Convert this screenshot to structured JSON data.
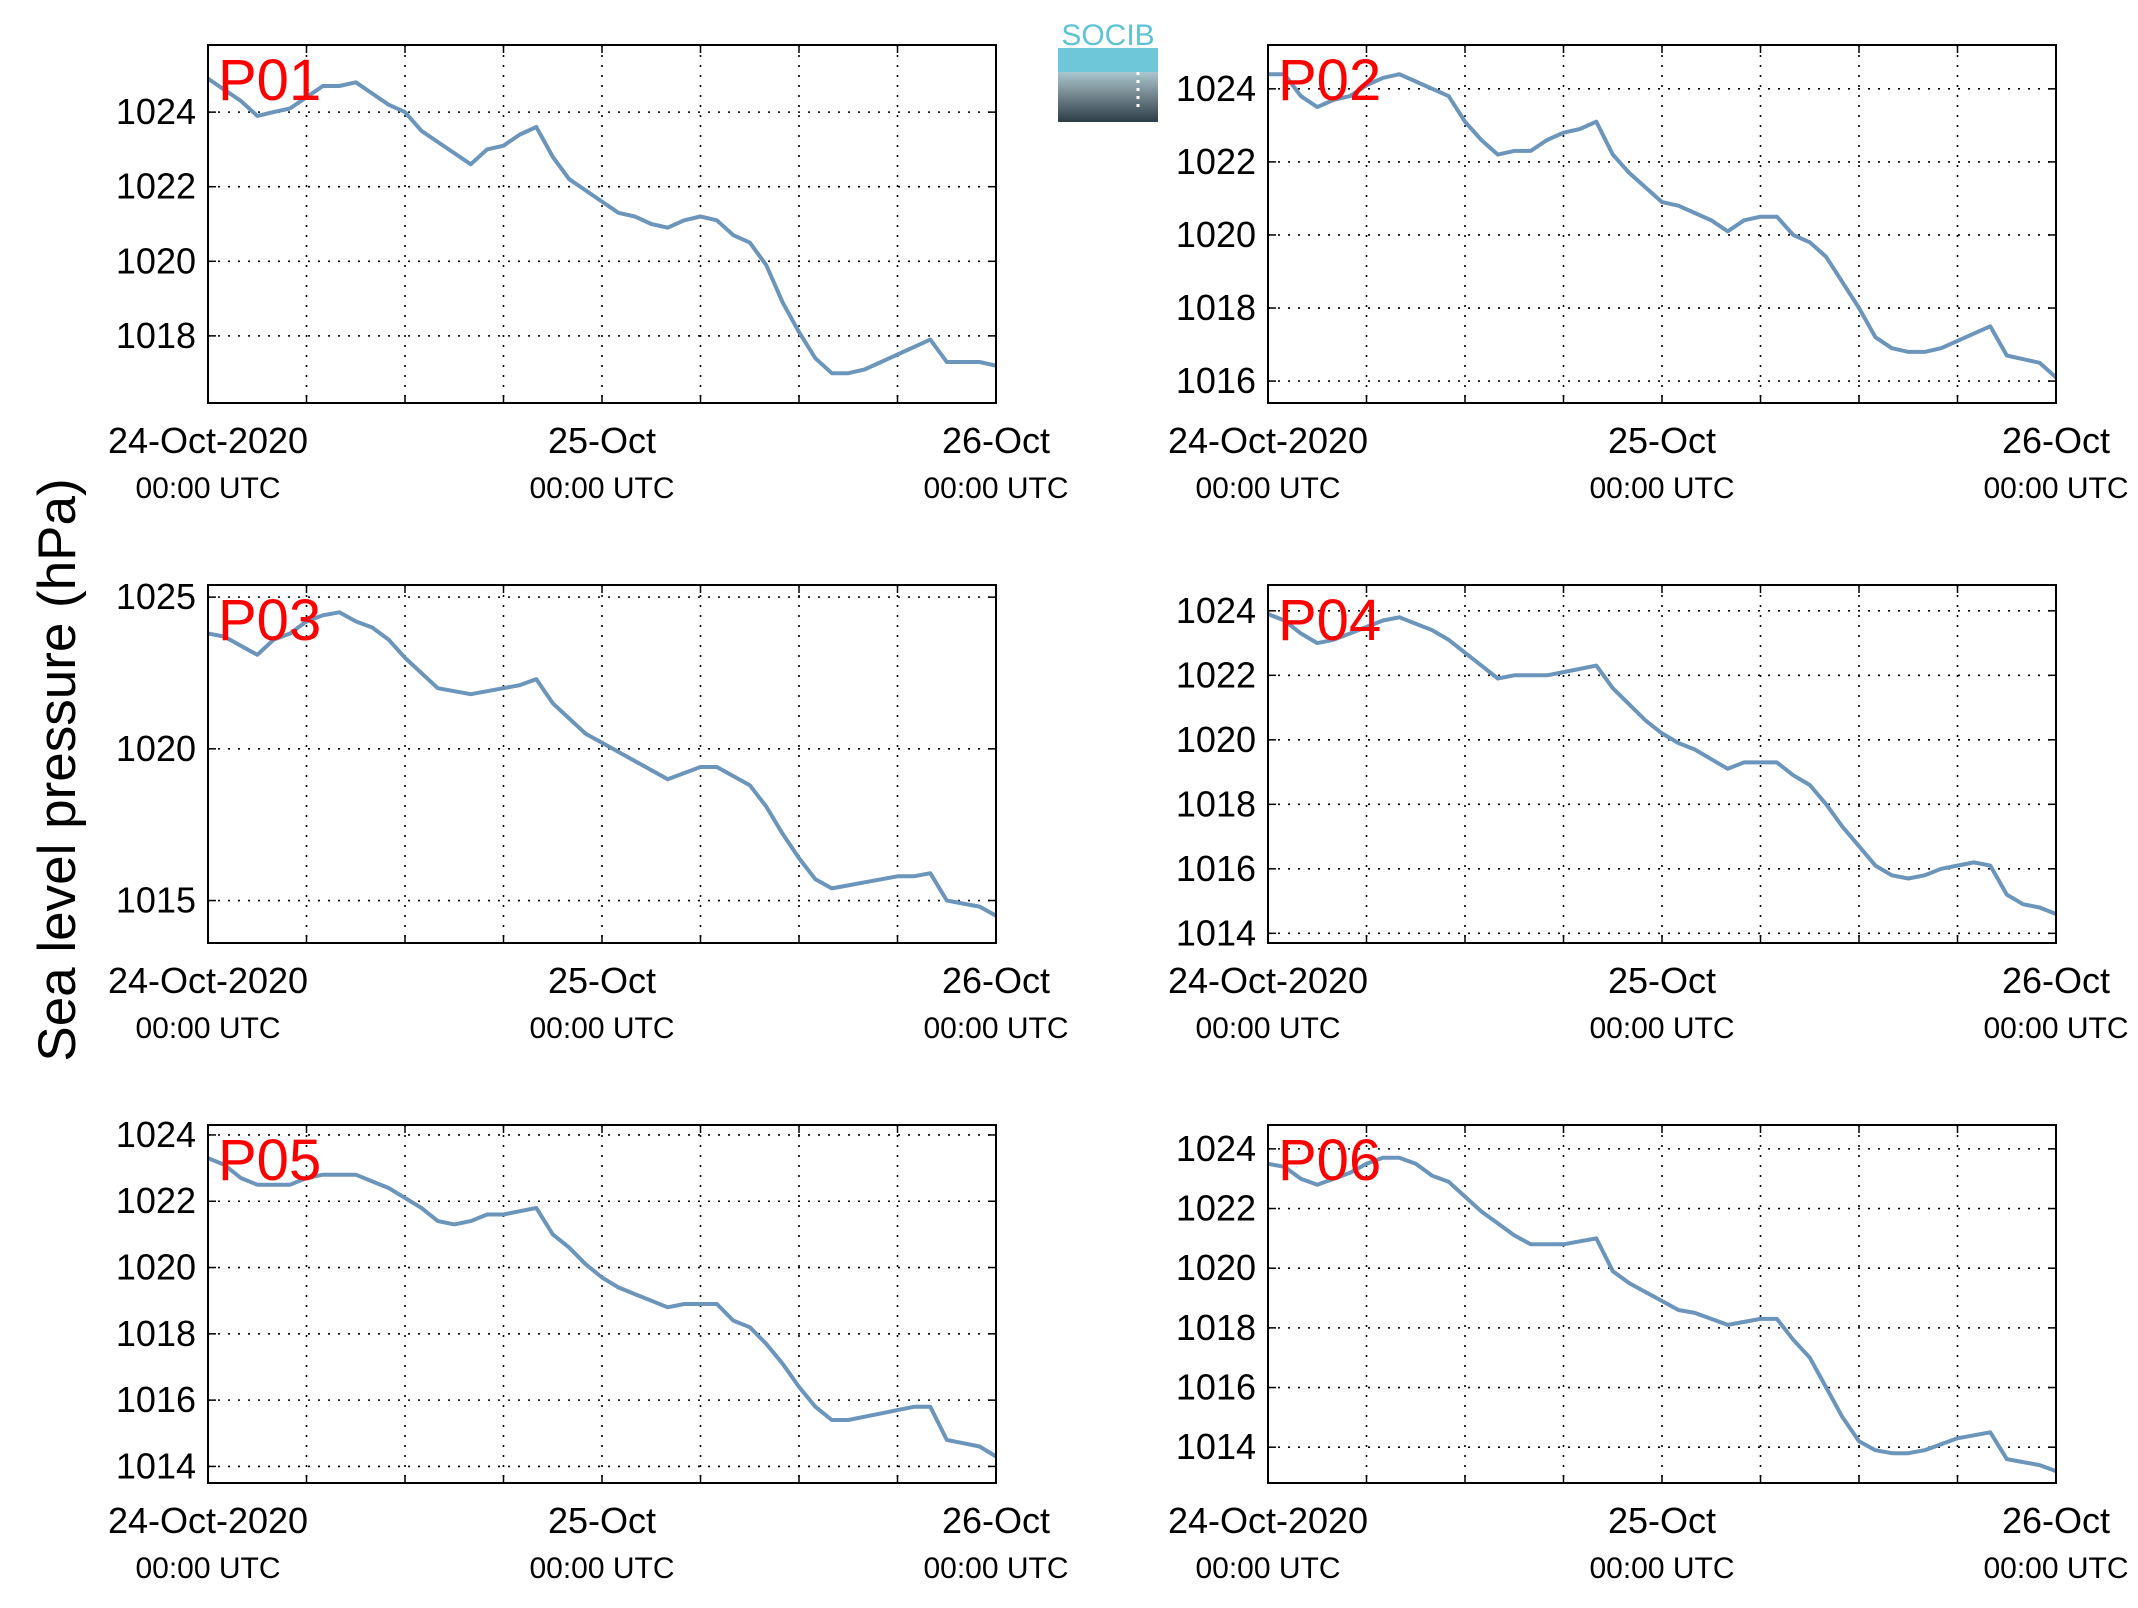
{
  "figure": {
    "ylabel": "Sea level pressure (hPa)",
    "logo_text": "SOCIB",
    "line_color": "#6b95bb",
    "label_color": "#ff0000"
  },
  "chart_data": [
    {
      "type": "line",
      "label": "P01",
      "xlim": [
        0,
        48
      ],
      "ylim": [
        1016.2,
        1025.8
      ],
      "yticks": [
        1018,
        1020,
        1022,
        1024
      ],
      "x_tick_labels": [
        {
          "x": 0,
          "date": "24-Oct-2020",
          "time": "00:00 UTC"
        },
        {
          "x": 24,
          "date": "25-Oct",
          "time": "00:00 UTC"
        },
        {
          "x": 48,
          "date": "26-Oct",
          "time": "00:00 UTC"
        }
      ],
      "x": [
        0,
        1,
        2,
        3,
        4,
        5,
        6,
        7,
        8,
        9,
        10,
        11,
        12,
        13,
        14,
        15,
        16,
        17,
        18,
        19,
        20,
        21,
        22,
        23,
        24,
        25,
        26,
        27,
        28,
        29,
        30,
        31,
        32,
        33,
        34,
        35,
        36,
        37,
        38,
        39,
        40,
        41,
        42,
        43,
        44,
        45,
        46,
        47,
        48
      ],
      "values": [
        1024.9,
        1024.6,
        1024.3,
        1023.9,
        1024.0,
        1024.1,
        1024.4,
        1024.7,
        1024.7,
        1024.8,
        1024.5,
        1024.2,
        1024.0,
        1023.5,
        1023.2,
        1022.9,
        1022.6,
        1023.0,
        1023.1,
        1023.4,
        1023.6,
        1022.8,
        1022.2,
        1021.9,
        1021.6,
        1021.3,
        1021.2,
        1021.0,
        1020.9,
        1021.1,
        1021.2,
        1021.1,
        1020.7,
        1020.5,
        1019.9,
        1018.9,
        1018.1,
        1017.4,
        1017.0,
        1017.0,
        1017.1,
        1017.3,
        1017.5,
        1017.7,
        1017.9,
        1017.3,
        1017.3,
        1017.3,
        1017.2
      ]
    },
    {
      "type": "line",
      "label": "P02",
      "xlim": [
        0,
        48
      ],
      "ylim": [
        1015.4,
        1025.2
      ],
      "yticks": [
        1016,
        1018,
        1020,
        1022,
        1024
      ],
      "x_tick_labels": [
        {
          "x": 0,
          "date": "24-Oct-2020",
          "time": "00:00 UTC"
        },
        {
          "x": 24,
          "date": "25-Oct",
          "time": "00:00 UTC"
        },
        {
          "x": 48,
          "date": "26-Oct",
          "time": "00:00 UTC"
        }
      ],
      "x": [
        0,
        1,
        2,
        3,
        4,
        5,
        6,
        7,
        8,
        9,
        10,
        11,
        12,
        13,
        14,
        15,
        16,
        17,
        18,
        19,
        20,
        21,
        22,
        23,
        24,
        25,
        26,
        27,
        28,
        29,
        30,
        31,
        32,
        33,
        34,
        35,
        36,
        37,
        38,
        39,
        40,
        41,
        42,
        43,
        44,
        45,
        46,
        47,
        48
      ],
      "values": [
        1024.4,
        1024.4,
        1023.8,
        1023.5,
        1023.7,
        1023.8,
        1024.1,
        1024.3,
        1024.4,
        1024.2,
        1024.0,
        1023.8,
        1023.1,
        1022.6,
        1022.2,
        1022.3,
        1022.3,
        1022.6,
        1022.8,
        1022.9,
        1023.1,
        1022.2,
        1021.7,
        1021.3,
        1020.9,
        1020.8,
        1020.6,
        1020.4,
        1020.1,
        1020.4,
        1020.5,
        1020.5,
        1020.0,
        1019.8,
        1019.4,
        1018.7,
        1018.0,
        1017.2,
        1016.9,
        1016.8,
        1016.8,
        1016.9,
        1017.1,
        1017.3,
        1017.5,
        1016.7,
        1016.6,
        1016.5,
        1016.1
      ]
    },
    {
      "type": "line",
      "label": "P03",
      "xlim": [
        0,
        48
      ],
      "ylim": [
        1013.6,
        1025.4
      ],
      "yticks": [
        1015,
        1020,
        1025
      ],
      "x_tick_labels": [
        {
          "x": 0,
          "date": "24-Oct-2020",
          "time": "00:00 UTC"
        },
        {
          "x": 24,
          "date": "25-Oct",
          "time": "00:00 UTC"
        },
        {
          "x": 48,
          "date": "26-Oct",
          "time": "00:00 UTC"
        }
      ],
      "x": [
        0,
        1,
        2,
        3,
        4,
        5,
        6,
        7,
        8,
        9,
        10,
        11,
        12,
        13,
        14,
        15,
        16,
        17,
        18,
        19,
        20,
        21,
        22,
        23,
        24,
        25,
        26,
        27,
        28,
        29,
        30,
        31,
        32,
        33,
        34,
        35,
        36,
        37,
        38,
        39,
        40,
        41,
        42,
        43,
        44,
        45,
        46,
        47,
        48
      ],
      "values": [
        1023.8,
        1023.7,
        1023.4,
        1023.1,
        1023.6,
        1023.8,
        1024.2,
        1024.4,
        1024.5,
        1024.2,
        1024.0,
        1023.6,
        1023.0,
        1022.5,
        1022.0,
        1021.9,
        1021.8,
        1021.9,
        1022.0,
        1022.1,
        1022.3,
        1021.5,
        1021.0,
        1020.5,
        1020.2,
        1019.9,
        1019.6,
        1019.3,
        1019.0,
        1019.2,
        1019.4,
        1019.4,
        1019.1,
        1018.8,
        1018.1,
        1017.2,
        1016.4,
        1015.7,
        1015.4,
        1015.5,
        1015.6,
        1015.7,
        1015.8,
        1015.8,
        1015.9,
        1015.0,
        1014.9,
        1014.8,
        1014.5
      ]
    },
    {
      "type": "line",
      "label": "P04",
      "xlim": [
        0,
        48
      ],
      "ylim": [
        1013.7,
        1024.8
      ],
      "yticks": [
        1014,
        1016,
        1018,
        1020,
        1022,
        1024
      ],
      "x_tick_labels": [
        {
          "x": 0,
          "date": "24-Oct-2020",
          "time": "00:00 UTC"
        },
        {
          "x": 24,
          "date": "25-Oct",
          "time": "00:00 UTC"
        },
        {
          "x": 48,
          "date": "26-Oct",
          "time": "00:00 UTC"
        }
      ],
      "x": [
        0,
        1,
        2,
        3,
        4,
        5,
        6,
        7,
        8,
        9,
        10,
        11,
        12,
        13,
        14,
        15,
        16,
        17,
        18,
        19,
        20,
        21,
        22,
        23,
        24,
        25,
        26,
        27,
        28,
        29,
        30,
        31,
        32,
        33,
        34,
        35,
        36,
        37,
        38,
        39,
        40,
        41,
        42,
        43,
        44,
        45,
        46,
        47,
        48
      ],
      "values": [
        1023.9,
        1023.7,
        1023.3,
        1023.0,
        1023.1,
        1023.3,
        1023.5,
        1023.7,
        1023.8,
        1023.6,
        1023.4,
        1023.1,
        1022.7,
        1022.3,
        1021.9,
        1022.0,
        1022.0,
        1022.0,
        1022.1,
        1022.2,
        1022.3,
        1021.6,
        1021.1,
        1020.6,
        1020.2,
        1019.9,
        1019.7,
        1019.4,
        1019.1,
        1019.3,
        1019.3,
        1019.3,
        1018.9,
        1018.6,
        1018.0,
        1017.3,
        1016.7,
        1016.1,
        1015.8,
        1015.7,
        1015.8,
        1016.0,
        1016.1,
        1016.2,
        1016.1,
        1015.2,
        1014.9,
        1014.8,
        1014.6
      ]
    },
    {
      "type": "line",
      "label": "P05",
      "xlim": [
        0,
        48
      ],
      "ylim": [
        1013.5,
        1024.3
      ],
      "yticks": [
        1014,
        1016,
        1018,
        1020,
        1022,
        1024
      ],
      "x_tick_labels": [
        {
          "x": 0,
          "date": "24-Oct-2020",
          "time": "00:00 UTC"
        },
        {
          "x": 24,
          "date": "25-Oct",
          "time": "00:00 UTC"
        },
        {
          "x": 48,
          "date": "26-Oct",
          "time": "00:00 UTC"
        }
      ],
      "x": [
        0,
        1,
        2,
        3,
        4,
        5,
        6,
        7,
        8,
        9,
        10,
        11,
        12,
        13,
        14,
        15,
        16,
        17,
        18,
        19,
        20,
        21,
        22,
        23,
        24,
        25,
        26,
        27,
        28,
        29,
        30,
        31,
        32,
        33,
        34,
        35,
        36,
        37,
        38,
        39,
        40,
        41,
        42,
        43,
        44,
        45,
        46,
        47,
        48
      ],
      "values": [
        1023.3,
        1023.1,
        1022.7,
        1022.5,
        1022.5,
        1022.5,
        1022.7,
        1022.8,
        1022.8,
        1022.8,
        1022.6,
        1022.4,
        1022.1,
        1021.8,
        1021.4,
        1021.3,
        1021.4,
        1021.6,
        1021.6,
        1021.7,
        1021.8,
        1021.0,
        1020.6,
        1020.1,
        1019.7,
        1019.4,
        1019.2,
        1019.0,
        1018.8,
        1018.9,
        1018.9,
        1018.9,
        1018.4,
        1018.2,
        1017.7,
        1017.1,
        1016.4,
        1015.8,
        1015.4,
        1015.4,
        1015.5,
        1015.6,
        1015.7,
        1015.8,
        1015.8,
        1014.8,
        1014.7,
        1014.6,
        1014.3
      ]
    },
    {
      "type": "line",
      "label": "P06",
      "xlim": [
        0,
        48
      ],
      "ylim": [
        1012.8,
        1024.8
      ],
      "yticks": [
        1014,
        1016,
        1018,
        1020,
        1022,
        1024
      ],
      "x_tick_labels": [
        {
          "x": 0,
          "date": "24-Oct-2020",
          "time": "00:00 UTC"
        },
        {
          "x": 24,
          "date": "25-Oct",
          "time": "00:00 UTC"
        },
        {
          "x": 48,
          "date": "26-Oct",
          "time": "00:00 UTC"
        }
      ],
      "x": [
        0,
        1,
        2,
        3,
        4,
        5,
        6,
        7,
        8,
        9,
        10,
        11,
        12,
        13,
        14,
        15,
        16,
        17,
        18,
        19,
        20,
        21,
        22,
        23,
        24,
        25,
        26,
        27,
        28,
        29,
        30,
        31,
        32,
        33,
        34,
        35,
        36,
        37,
        38,
        39,
        40,
        41,
        42,
        43,
        44,
        45,
        46,
        47,
        48
      ],
      "values": [
        1023.5,
        1023.4,
        1023.0,
        1022.8,
        1023.0,
        1023.2,
        1023.5,
        1023.7,
        1023.7,
        1023.5,
        1023.1,
        1022.9,
        1022.4,
        1021.9,
        1021.5,
        1021.1,
        1020.8,
        1020.8,
        1020.8,
        1020.9,
        1021.0,
        1019.9,
        1019.5,
        1019.2,
        1018.9,
        1018.6,
        1018.5,
        1018.3,
        1018.1,
        1018.2,
        1018.3,
        1018.3,
        1017.6,
        1017.0,
        1016.0,
        1015.0,
        1014.2,
        1013.9,
        1013.8,
        1013.8,
        1013.9,
        1014.1,
        1014.3,
        1014.4,
        1014.5,
        1013.6,
        1013.5,
        1013.4,
        1013.2
      ]
    }
  ]
}
